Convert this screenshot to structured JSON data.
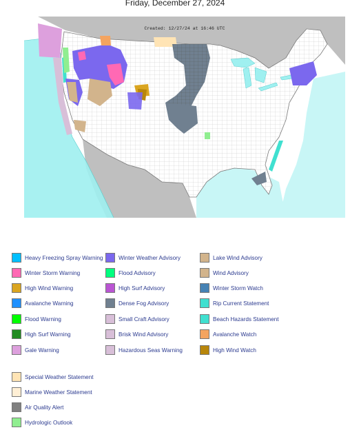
{
  "page": {
    "date": "Friday, December 27, 2024"
  },
  "map": {
    "created": "Created: 12/27/24 at 16:46 UTC",
    "colors": {
      "ocean": "#ffffff",
      "land_outside": "#bfbfbf",
      "us_land": "#ffffff",
      "marine_zone": "#9ff0f0",
      "county_lines": "#b8b8b8"
    }
  },
  "legend": {
    "primary": [
      {
        "label": "Heavy Freezing Spray Warning",
        "color": "#00bfff"
      },
      {
        "label": "Winter Storm Warning",
        "color": "#ff69b4"
      },
      {
        "label": "High Wind Warning",
        "color": "#daa520"
      },
      {
        "label": "Avalanche Warning",
        "color": "#1e90ff"
      },
      {
        "label": "Flood Warning",
        "color": "#00ff00"
      },
      {
        "label": "High Surf Warning",
        "color": "#228b22"
      },
      {
        "label": "Gale Warning",
        "color": "#dda0dd"
      },
      {
        "label": "Winter Weather Advisory",
        "color": "#7b68ee"
      },
      {
        "label": "Flood Advisory",
        "color": "#00ff7f"
      },
      {
        "label": "High Surf Advisory",
        "color": "#ba55d3"
      },
      {
        "label": "Dense Fog Advisory",
        "color": "#708090"
      },
      {
        "label": "Small Craft Advisory",
        "color": "#d8bfd8"
      },
      {
        "label": "Brisk Wind Advisory",
        "color": "#d8bfd8"
      },
      {
        "label": "Hazardous Seas Warning",
        "color": "#d8bfd8"
      },
      {
        "label": "Lake Wind Advisory",
        "color": "#d2b48c"
      },
      {
        "label": "Wind Advisory",
        "color": "#d2b48c"
      },
      {
        "label": "Winter Storm Watch",
        "color": "#4682b4"
      },
      {
        "label": "Rip Current Statement",
        "color": "#40e0d0"
      },
      {
        "label": "Beach Hazards Statement",
        "color": "#40e0d0"
      },
      {
        "label": "Avalanche Watch",
        "color": "#f4a460"
      },
      {
        "label": "High Wind Watch",
        "color": "#b8860b"
      }
    ],
    "secondary": [
      {
        "label": "Special Weather Statement",
        "color": "#ffe4b5"
      },
      {
        "label": "Marine Weather Statement",
        "color": "#ffefd5"
      },
      {
        "label": "Air Quality Alert",
        "color": "#808080"
      },
      {
        "label": "Hydrologic Outlook",
        "color": "#90ee90"
      }
    ]
  }
}
